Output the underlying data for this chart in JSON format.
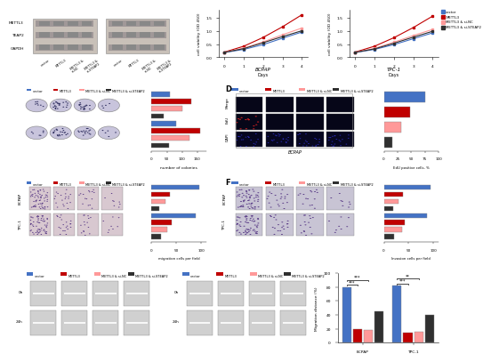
{
  "cell_viability": {
    "days": [
      0,
      1,
      2,
      3,
      4
    ],
    "BCPAP": {
      "vector": [
        0.18,
        0.3,
        0.48,
        0.72,
        0.95
      ],
      "METTL3": [
        0.2,
        0.42,
        0.75,
        1.15,
        1.6
      ],
      "METTL3_siNC": [
        0.19,
        0.35,
        0.58,
        0.85,
        1.1
      ],
      "METTL3_siSTEAP2": [
        0.19,
        0.33,
        0.55,
        0.78,
        1.0
      ]
    },
    "TPC1": {
      "vector": [
        0.18,
        0.3,
        0.48,
        0.7,
        0.92
      ],
      "METTL3": [
        0.2,
        0.42,
        0.74,
        1.12,
        1.55
      ],
      "METTL3_siNC": [
        0.19,
        0.34,
        0.57,
        0.82,
        1.05
      ],
      "METTL3_siSTEAP2": [
        0.19,
        0.32,
        0.53,
        0.76,
        0.98
      ]
    },
    "ylabel": "cell viability (OD 450)",
    "xlabel": "Days",
    "ylim": [
      0.0,
      1.8
    ]
  },
  "colony_bcpap": [
    60,
    130,
    100,
    40
  ],
  "colony_tpc1": [
    80,
    160,
    125,
    58
  ],
  "colony_xlim": 180,
  "edu_bcpap": [
    75,
    48,
    32,
    15
  ],
  "edu_xlim": 100,
  "migration_bcpap": [
    96,
    36,
    28,
    16
  ],
  "migration_tpc1": [
    88,
    40,
    32,
    18
  ],
  "migration_xlim": 110,
  "invasion_bcpap": [
    94,
    38,
    30,
    18
  ],
  "invasion_tpc1": [
    86,
    42,
    36,
    20
  ],
  "invasion_xlim": 110,
  "wound_bcpap": [
    80,
    20,
    18,
    45
  ],
  "wound_tpc1": [
    82,
    15,
    16,
    40
  ],
  "wound_ylim": 100,
  "colors": [
    "#4472C4",
    "#C00000",
    "#FF9999",
    "#303030"
  ],
  "legend_labels": [
    "vector",
    "METTL3",
    "METTL3 & si-NC",
    "METTL3 & si-STEAP2"
  ],
  "wb_labels": [
    "METTL3",
    "TEAP2",
    "GAPDH"
  ],
  "wb_bg": "#C8C0B8",
  "colony_img_bg": "#C8C4DC",
  "mig_img_bg": "#D8C8D0",
  "inv_img_bg": "#C8C4D4",
  "edu_img_bg": "#080818",
  "wh_img_bg": "#D0D0D0",
  "bg_color": "#FFFFFF"
}
